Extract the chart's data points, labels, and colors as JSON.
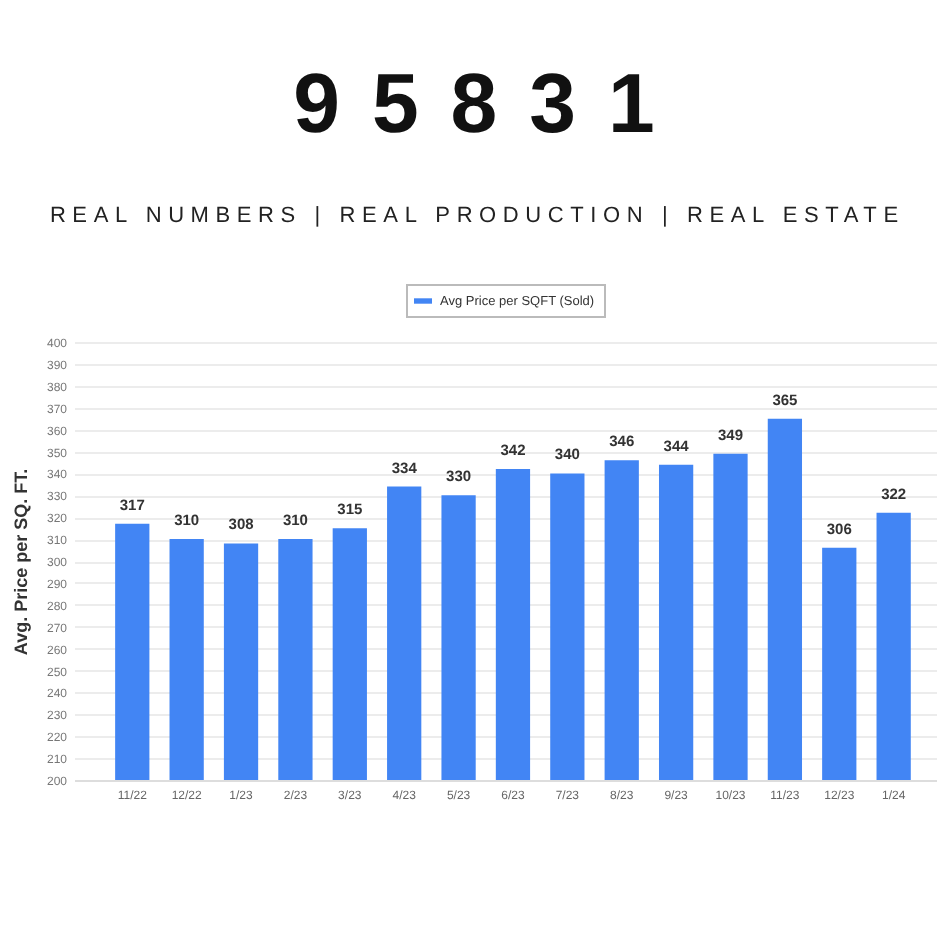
{
  "chart_data": {
    "type": "bar",
    "title": "95831",
    "subtitle": "REAL NUMBERS | REAL PRODUCTION | REAL ESTATE",
    "ylabel": "Avg. Price per SQ. FT.",
    "categories": [
      "11/22",
      "12/22",
      "1/23",
      "2/23",
      "3/23",
      "4/23",
      "5/23",
      "6/23",
      "7/23",
      "8/23",
      "9/23",
      "10/23",
      "11/23",
      "12/23",
      "1/24"
    ],
    "series": [
      {
        "name": "Avg Price per SQFT (Sold)",
        "color": "#4285f4",
        "values": [
          317,
          310,
          308,
          310,
          315,
          334,
          330,
          342,
          340,
          346,
          344,
          349,
          365,
          306,
          322
        ]
      }
    ],
    "ylim": [
      200,
      400
    ],
    "yticks": [
      200,
      210,
      220,
      230,
      240,
      250,
      260,
      270,
      280,
      290,
      300,
      310,
      320,
      330,
      340,
      350,
      360,
      370,
      380,
      390,
      400
    ],
    "grid": "y",
    "legend": "top",
    "data_labels": true
  }
}
